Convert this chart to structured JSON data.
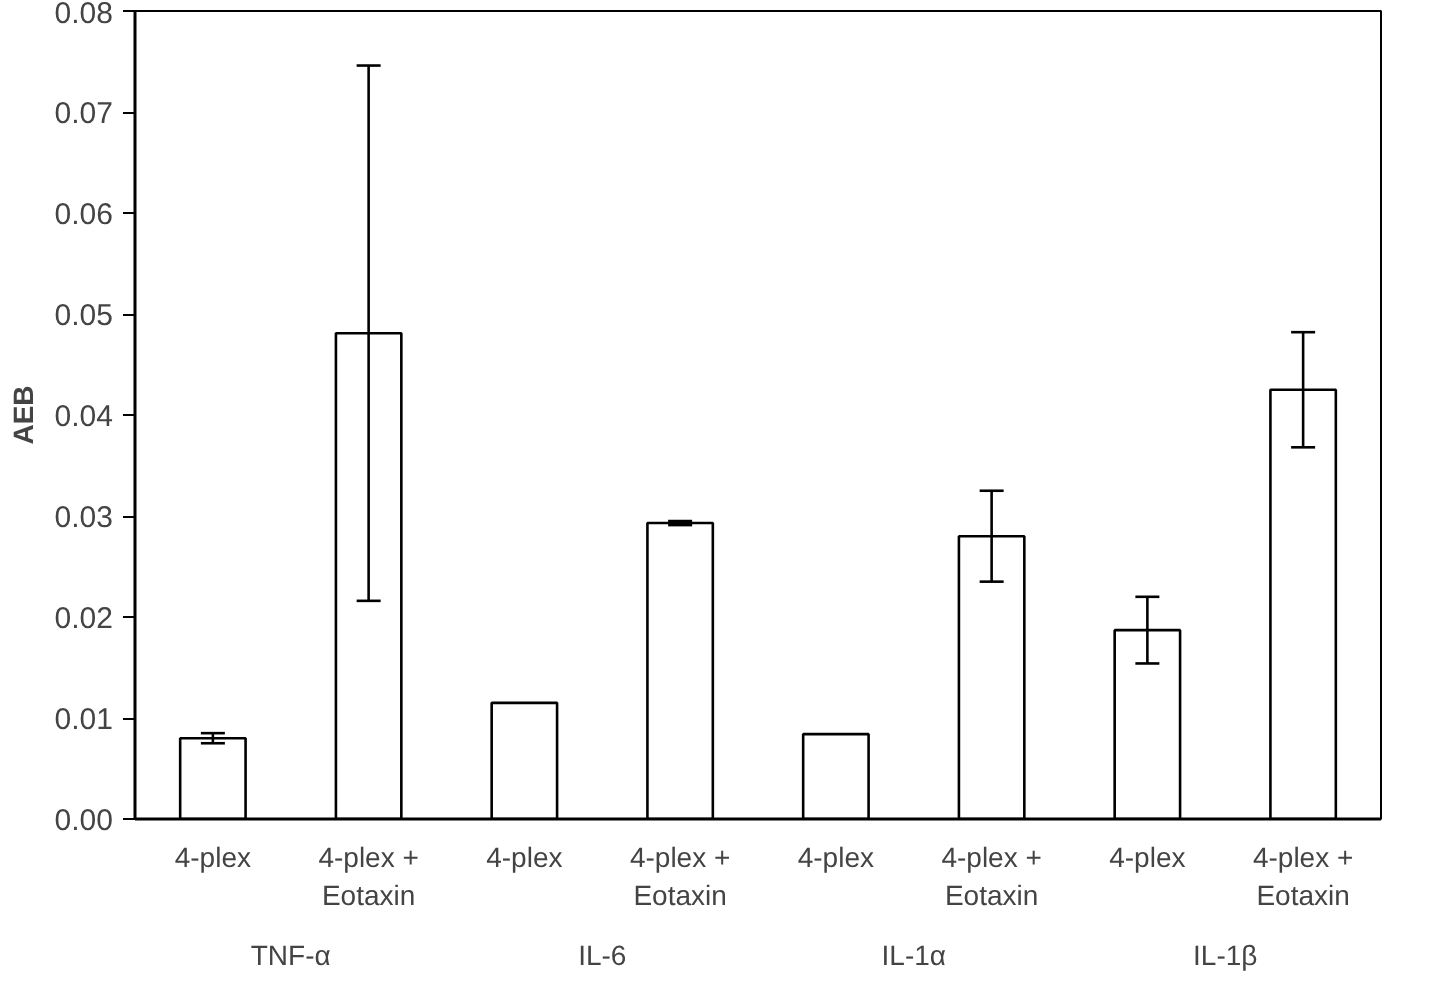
{
  "chart_data": {
    "type": "bar",
    "ylabel": "AEB",
    "categories": [
      "4-plex",
      "4-plex + Eotaxin",
      "4-plex",
      "4-plex + Eotaxin",
      "4-plex",
      "4-plex + Eotaxin",
      "4-plex",
      "4-plex + Eotaxin"
    ],
    "annotations": [
      "TNF-α",
      "IL-6",
      "IL-1α",
      "IL-1β"
    ],
    "values": [
      0.008,
      0.0481,
      0.0115,
      0.0293,
      0.0084,
      0.028,
      0.0187,
      0.0425
    ],
    "errors": [
      0.0005,
      0.0265,
      null,
      0.0002,
      null,
      0.0045,
      0.0033,
      0.0057
    ],
    "color": "#ffffff",
    "ylim": [
      0,
      0.08
    ],
    "yticks": [
      {
        "value": 0,
        "label": "0.00"
      },
      {
        "value": 0.01,
        "label": "0.01"
      },
      {
        "value": 0.02,
        "label": "0.02"
      },
      {
        "value": 0.03,
        "label": "0.03"
      },
      {
        "value": 0.04,
        "label": "0.04"
      },
      {
        "value": 0.05,
        "label": "0.05"
      },
      {
        "value": 0.06,
        "label": "0.06"
      },
      {
        "value": 0.07,
        "label": "0.07"
      },
      {
        "value": 0.08,
        "label": "0.08"
      }
    ],
    "grid": false
  }
}
